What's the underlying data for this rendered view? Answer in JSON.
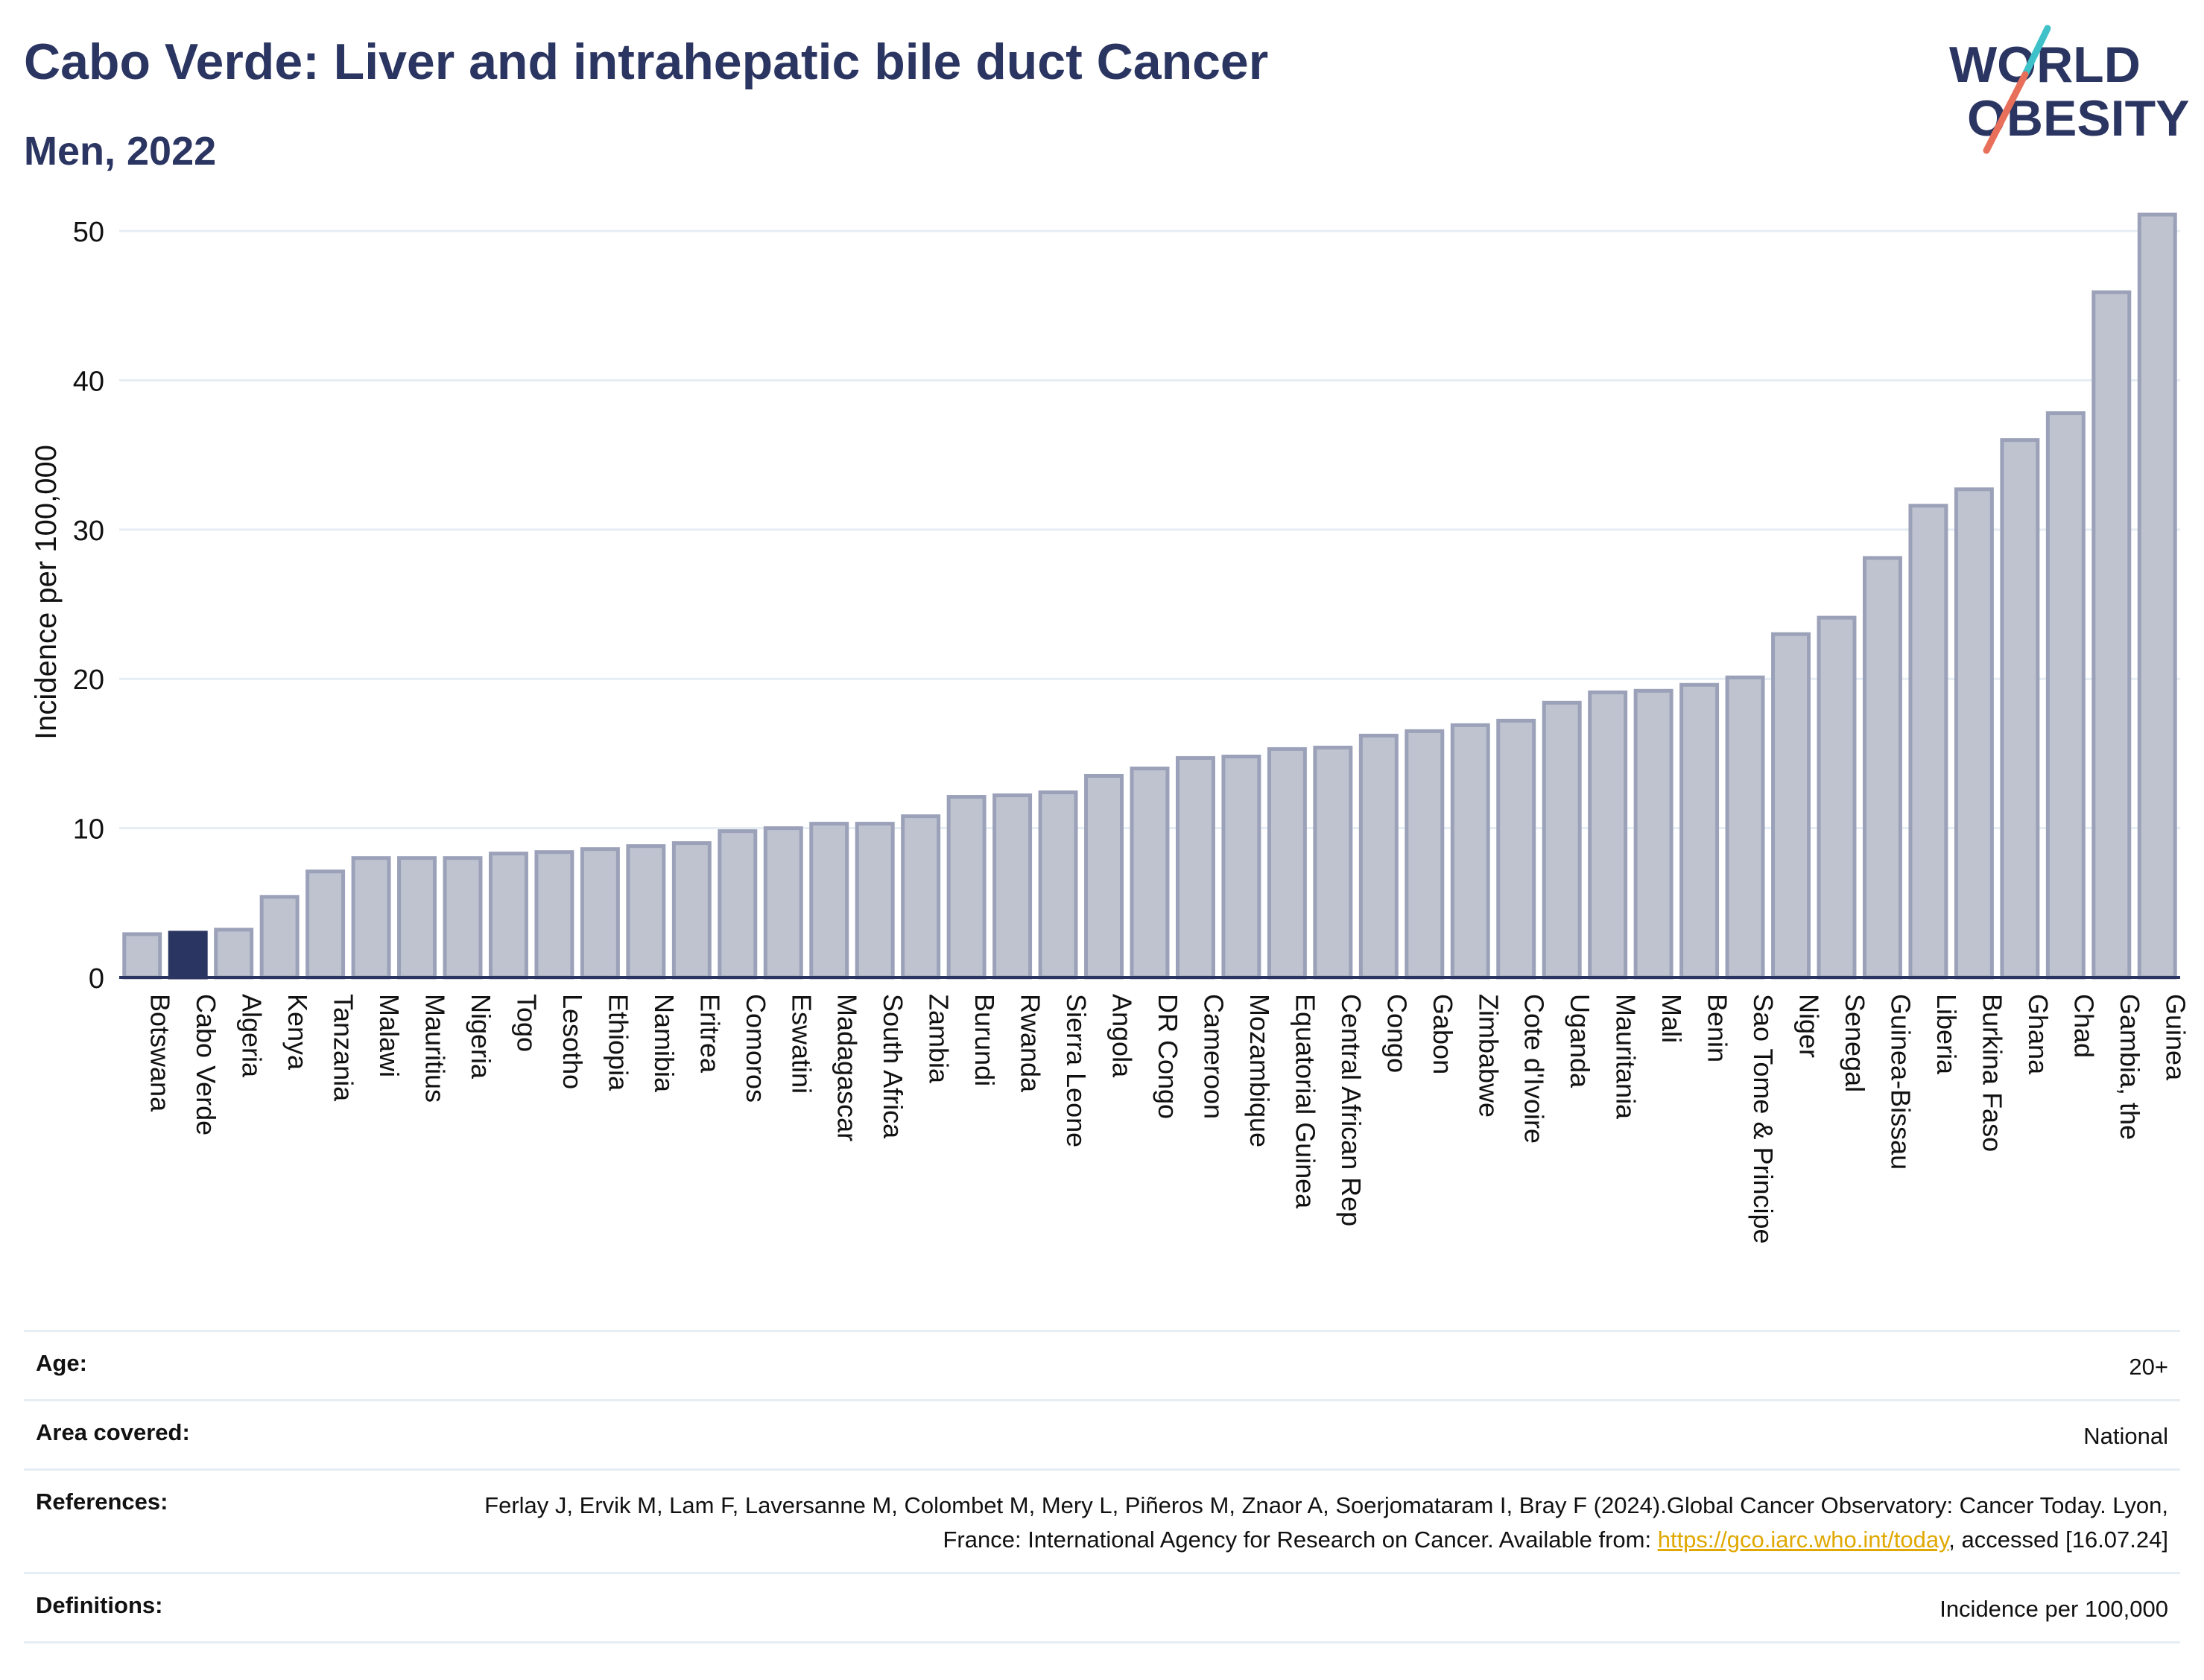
{
  "header": {
    "title": "Cabo Verde: Liver and intrahepatic bile duct Cancer",
    "subtitle": "Men, 2022"
  },
  "logo": {
    "line1": "WORLD",
    "line2": "OBESITY",
    "icon": "world-obesity-logo-slash",
    "colors": {
      "text": "#2b3561",
      "slash_top": "#3fc1c9",
      "slash_bottom": "#e8705b"
    }
  },
  "chart_data": {
    "type": "bar",
    "title": "Cabo Verde: Liver and intrahepatic bile duct Cancer",
    "subtitle": "Men, 2022",
    "xlabel": "",
    "ylabel": "Incidence per 100,000",
    "ylim": [
      0,
      53
    ],
    "yticks": [
      0,
      10,
      20,
      30,
      40,
      50
    ],
    "grid": true,
    "highlight": "Cabo Verde",
    "colors": {
      "bar": "#bfc3d0",
      "bar_edge": "#9ba1b8",
      "highlight": "#2b3561",
      "grid": "#e6edf3"
    },
    "categories": [
      "Botswana",
      "Cabo Verde",
      "Algeria",
      "Kenya",
      "Tanzania",
      "Malawi",
      "Mauritius",
      "Nigeria",
      "Togo",
      "Lesotho",
      "Ethiopia",
      "Namibia",
      "Eritrea",
      "Comoros",
      "Eswatini",
      "Madagascar",
      "South Africa",
      "Zambia",
      "Burundi",
      "Rwanda",
      "Sierra Leone",
      "Angola",
      "DR Congo",
      "Cameroon",
      "Mozambique",
      "Equatorial Guinea",
      "Central African Rep",
      "Congo",
      "Gabon",
      "Zimbabwe",
      "Cote d'Ivoire",
      "Uganda",
      "Mauritania",
      "Mali",
      "Benin",
      "Sao Tome & Principe",
      "Niger",
      "Senegal",
      "Guinea-Bissau",
      "Liberia",
      "Burkina Faso",
      "Ghana",
      "Chad",
      "Gambia, the",
      "Guinea"
    ],
    "values": [
      2.9,
      3.0,
      3.2,
      5.4,
      7.1,
      8.0,
      8.0,
      8.0,
      8.3,
      8.4,
      8.6,
      8.8,
      9.0,
      9.8,
      10.0,
      10.3,
      10.3,
      10.8,
      12.1,
      12.2,
      12.4,
      13.5,
      14.0,
      14.7,
      14.8,
      15.3,
      15.4,
      16.2,
      16.5,
      16.9,
      17.2,
      18.4,
      19.1,
      19.2,
      19.6,
      20.1,
      23.0,
      24.1,
      28.1,
      31.6,
      32.7,
      36.0,
      37.8,
      45.9,
      51.1
    ]
  },
  "meta": {
    "age_label": "Age:",
    "age_value": "20+",
    "area_label": "Area covered:",
    "area_value": "National",
    "references_label": "References:",
    "references_text": "Ferlay J, Ervik M, Lam F, Laversanne M, Colombet M, Mery L, Piñeros M, Znaor A, Soerjomataram I, Bray F (2024).Global Cancer Observatory: Cancer Today. Lyon, France: International Agency for Research on Cancer. Available from: ",
    "references_link": "https://gco.iarc.who.int/today",
    "references_tail": ", accessed [16.07.24]",
    "definitions_label": "Definitions:",
    "definitions_value": "Incidence per 100,000"
  }
}
